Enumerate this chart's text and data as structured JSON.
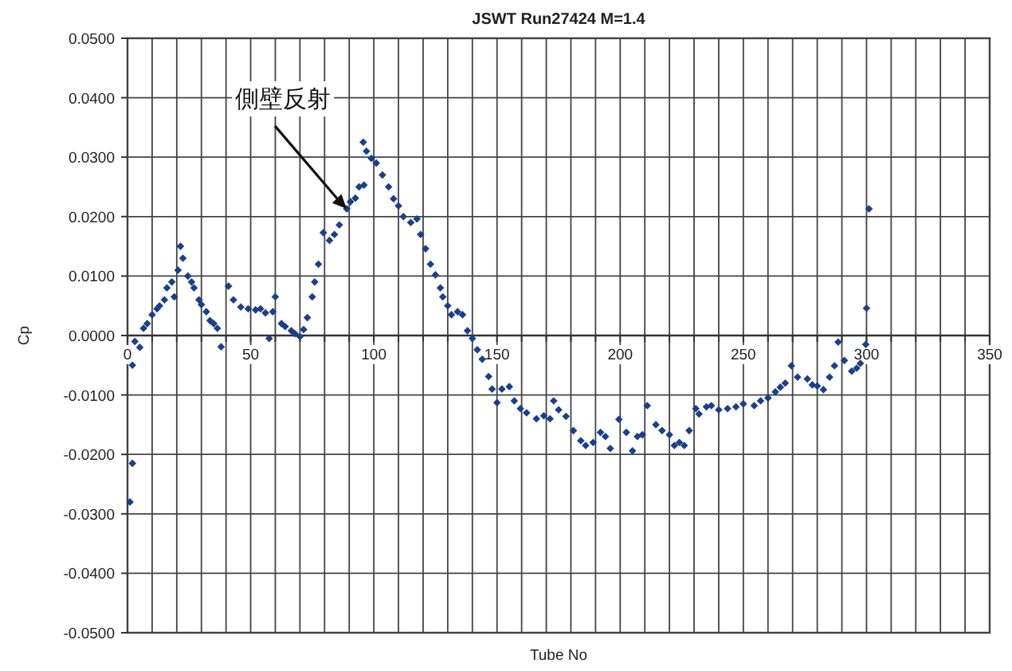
{
  "chart_data": {
    "type": "scatter",
    "title": "JSWT Run27424 M=1.4",
    "xlabel": "Tube No",
    "ylabel": "Cp",
    "annotations": [
      {
        "text": "側壁反射",
        "x": 89,
        "y": 0.0213
      }
    ],
    "marker": "diamond",
    "grid": true,
    "xlim": [
      0,
      350
    ],
    "ylim": [
      -0.05,
      0.05
    ],
    "xticks": [
      0,
      {
        "value": 10,
        "label": null
      },
      {
        "value": 20,
        "label": null
      },
      {
        "value": 30,
        "label": null
      },
      {
        "value": 40,
        "label": null
      },
      50,
      {
        "value": 60,
        "label": null
      },
      {
        "value": 70,
        "label": null
      },
      {
        "value": 80,
        "label": null
      },
      {
        "value": 90,
        "label": null
      },
      100,
      {
        "value": 110,
        "label": null
      },
      {
        "value": 120,
        "label": null
      },
      {
        "value": 130,
        "label": null
      },
      {
        "value": 140,
        "label": null
      },
      150,
      {
        "value": 160,
        "label": null
      },
      {
        "value": 170,
        "label": null
      },
      {
        "value": 180,
        "label": null
      },
      {
        "value": 190,
        "label": null
      },
      200,
      {
        "value": 210,
        "label": null
      },
      {
        "value": 220,
        "label": null
      },
      {
        "value": 230,
        "label": null
      },
      {
        "value": 240,
        "label": null
      },
      250,
      {
        "value": 260,
        "label": null
      },
      {
        "value": 270,
        "label": null
      },
      {
        "value": 280,
        "label": null
      },
      {
        "value": 290,
        "label": null
      },
      300,
      {
        "value": 310,
        "label": null
      },
      {
        "value": 320,
        "label": null
      },
      {
        "value": 330,
        "label": null
      },
      {
        "value": 340,
        "label": null
      },
      350
    ],
    "yticks": [
      {
        "value": -0.05,
        "label": "-0.0500"
      },
      {
        "value": -0.04,
        "label": "-0.0400"
      },
      {
        "value": -0.03,
        "label": "-0.0300"
      },
      {
        "value": -0.02,
        "label": "-0.0200"
      },
      {
        "value": -0.01,
        "label": "-0.0100"
      },
      {
        "value": 0,
        "label": "0.0000"
      },
      {
        "value": 0.01,
        "label": "0.0100"
      },
      {
        "value": 0.02,
        "label": "0.0200"
      },
      {
        "value": 0.03,
        "label": "0.0300"
      },
      {
        "value": 0.04,
        "label": "0.0400"
      },
      {
        "value": 0.05,
        "label": "0.0500"
      }
    ],
    "x": [
      1,
      2,
      2,
      3,
      5,
      6.5,
      8,
      10,
      12,
      13,
      15,
      16,
      18,
      19,
      20.5,
      21.5,
      22.5,
      24.5,
      26,
      27,
      29,
      30,
      32,
      33.5,
      35,
      36.5,
      38,
      41,
      43,
      46,
      49,
      52,
      54,
      56,
      57.5,
      59,
      60,
      62.5,
      64,
      66.5,
      68,
      70,
      71.5,
      73,
      75,
      76,
      77.5,
      79.5,
      82,
      84,
      86,
      89,
      90.5,
      92.5,
      94,
      95.7,
      96,
      97,
      99,
      101,
      103.5,
      106,
      108,
      110,
      112,
      115,
      117.5,
      119,
      121,
      123,
      125,
      127,
      128,
      130,
      131.5,
      134,
      136,
      138,
      140,
      142,
      144,
      146.6,
      148,
      150,
      152,
      155,
      157,
      159.5,
      162,
      166,
      169,
      171.5,
      173,
      175,
      178,
      181,
      184,
      186,
      189,
      192,
      194,
      196,
      199.5,
      202.5,
      205,
      207,
      209,
      211,
      214.5,
      217,
      220,
      222,
      224,
      226,
      228,
      230.7,
      232,
      235,
      237,
      240,
      243.6,
      247,
      250,
      254.4,
      257,
      260,
      263,
      265,
      267,
      269.5,
      272,
      276,
      278,
      280,
      282.5,
      285,
      287,
      288.5,
      291,
      294,
      296,
      297.5,
      299.7,
      300,
      301
    ],
    "series": [
      {
        "color": "#1b3f8c",
        "values": [
          -0.028,
          -0.0215,
          -0.005,
          -0.001,
          -0.002,
          0.0012,
          0.002,
          0.0035,
          0.0045,
          0.005,
          0.006,
          0.008,
          0.009,
          0.0065,
          0.011,
          0.015,
          0.013,
          0.01,
          0.009,
          0.008,
          0.006,
          0.0052,
          0.004,
          0.0025,
          0.002,
          0.0012,
          -0.0019,
          0.0083,
          0.006,
          0.0048,
          0.0045,
          0.0043,
          0.0045,
          0.0038,
          -0.0005,
          0.004,
          0.0065,
          0.002,
          0.0015,
          0.0008,
          0.0003,
          -0.0002,
          0.001,
          0.003,
          0.0065,
          0.009,
          0.012,
          0.0173,
          0.016,
          0.017,
          0.0186,
          0.0213,
          0.0225,
          0.0231,
          0.025,
          0.0325,
          0.0253,
          0.031,
          0.0298,
          0.029,
          0.027,
          0.025,
          0.023,
          0.0218,
          0.02,
          0.019,
          0.0196,
          0.017,
          0.0146,
          0.012,
          0.0102,
          0.008,
          0.0065,
          0.005,
          0.0035,
          0.004,
          0.0035,
          0.0008,
          -0.0005,
          -0.0024,
          -0.004,
          -0.0069,
          -0.009,
          -0.0113,
          -0.009,
          -0.0086,
          -0.011,
          -0.0123,
          -0.013,
          -0.014,
          -0.0135,
          -0.014,
          -0.011,
          -0.0125,
          -0.0136,
          -0.016,
          -0.0177,
          -0.0185,
          -0.018,
          -0.0163,
          -0.017,
          -0.019,
          -0.0141,
          -0.0163,
          -0.0194,
          -0.017,
          -0.0167,
          -0.0118,
          -0.015,
          -0.016,
          -0.0167,
          -0.0185,
          -0.018,
          -0.0185,
          -0.016,
          -0.0123,
          -0.0132,
          -0.012,
          -0.0118,
          -0.0125,
          -0.0123,
          -0.012,
          -0.0115,
          -0.0118,
          -0.011,
          -0.0105,
          -0.0095,
          -0.0087,
          -0.008,
          -0.0051,
          -0.007,
          -0.0073,
          -0.0083,
          -0.0085,
          -0.0091,
          -0.007,
          -0.0051,
          -0.0011,
          -0.0042,
          -0.006,
          -0.0055,
          -0.0047,
          -0.0015,
          0.0046,
          0.0213
        ]
      }
    ]
  }
}
